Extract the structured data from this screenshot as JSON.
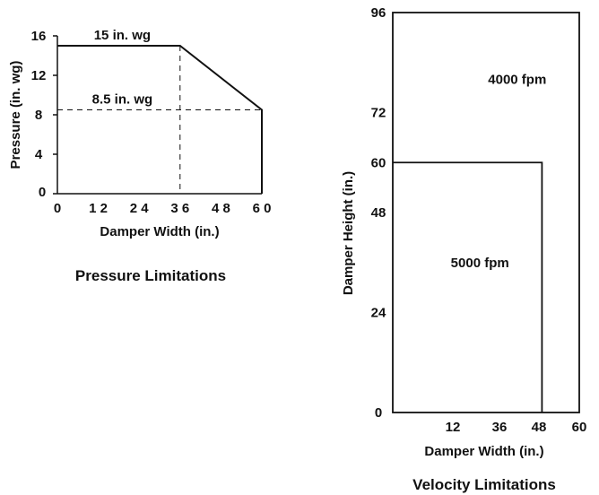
{
  "chart_data": [
    {
      "type": "line",
      "caption": "Pressure Limitations",
      "xlabel": "Damper Width (in.)",
      "ylabel": "Pressure (in. wg)",
      "xlim": [
        0,
        60
      ],
      "ylim": [
        0,
        16
      ],
      "x_ticks": [
        "0",
        "1 2",
        "2 4",
        "3 6",
        "4 8",
        "6 0"
      ],
      "x_tick_values": [
        0,
        12,
        24,
        36,
        48,
        60
      ],
      "y_ticks": [
        "0",
        "4",
        "8",
        "12",
        "16"
      ],
      "y_tick_values": [
        0,
        4,
        8,
        12,
        16
      ],
      "y_zero_label": "0",
      "series": [
        {
          "x": [
            0,
            36,
            60,
            60
          ],
          "y": [
            15,
            15,
            8.5,
            0
          ]
        }
      ],
      "reference_lines": [
        {
          "orientation": "horizontal",
          "value": 8.5,
          "style": "dashed"
        },
        {
          "orientation": "vertical",
          "value": 36,
          "style": "dashed"
        }
      ],
      "annotations": [
        {
          "text": "15 in. wg",
          "x": 18,
          "y": 15
        },
        {
          "text": "8.5 in. wg",
          "x": 18,
          "y": 8.5
        }
      ]
    },
    {
      "type": "area",
      "caption": "Velocity Limitations",
      "xlabel": "Damper Width (in.)",
      "ylabel": "Damper Height (in.)",
      "xlim": [
        0,
        60
      ],
      "ylim": [
        0,
        96
      ],
      "x_ticks": [
        "12",
        "36",
        "48",
        "60"
      ],
      "x_tick_values": [
        12,
        36,
        48,
        60
      ],
      "y_ticks": [
        "0",
        "24",
        "48",
        "60",
        "72",
        "96"
      ],
      "y_tick_values": [
        0,
        24,
        48,
        60,
        72,
        96
      ],
      "regions": [
        {
          "label": "4000 fpm",
          "width": 60,
          "height": 96,
          "label_at": [
            36,
            80
          ]
        },
        {
          "label": "5000 fpm",
          "width": 48,
          "height": 60,
          "label_at": [
            24,
            36
          ]
        }
      ]
    }
  ]
}
